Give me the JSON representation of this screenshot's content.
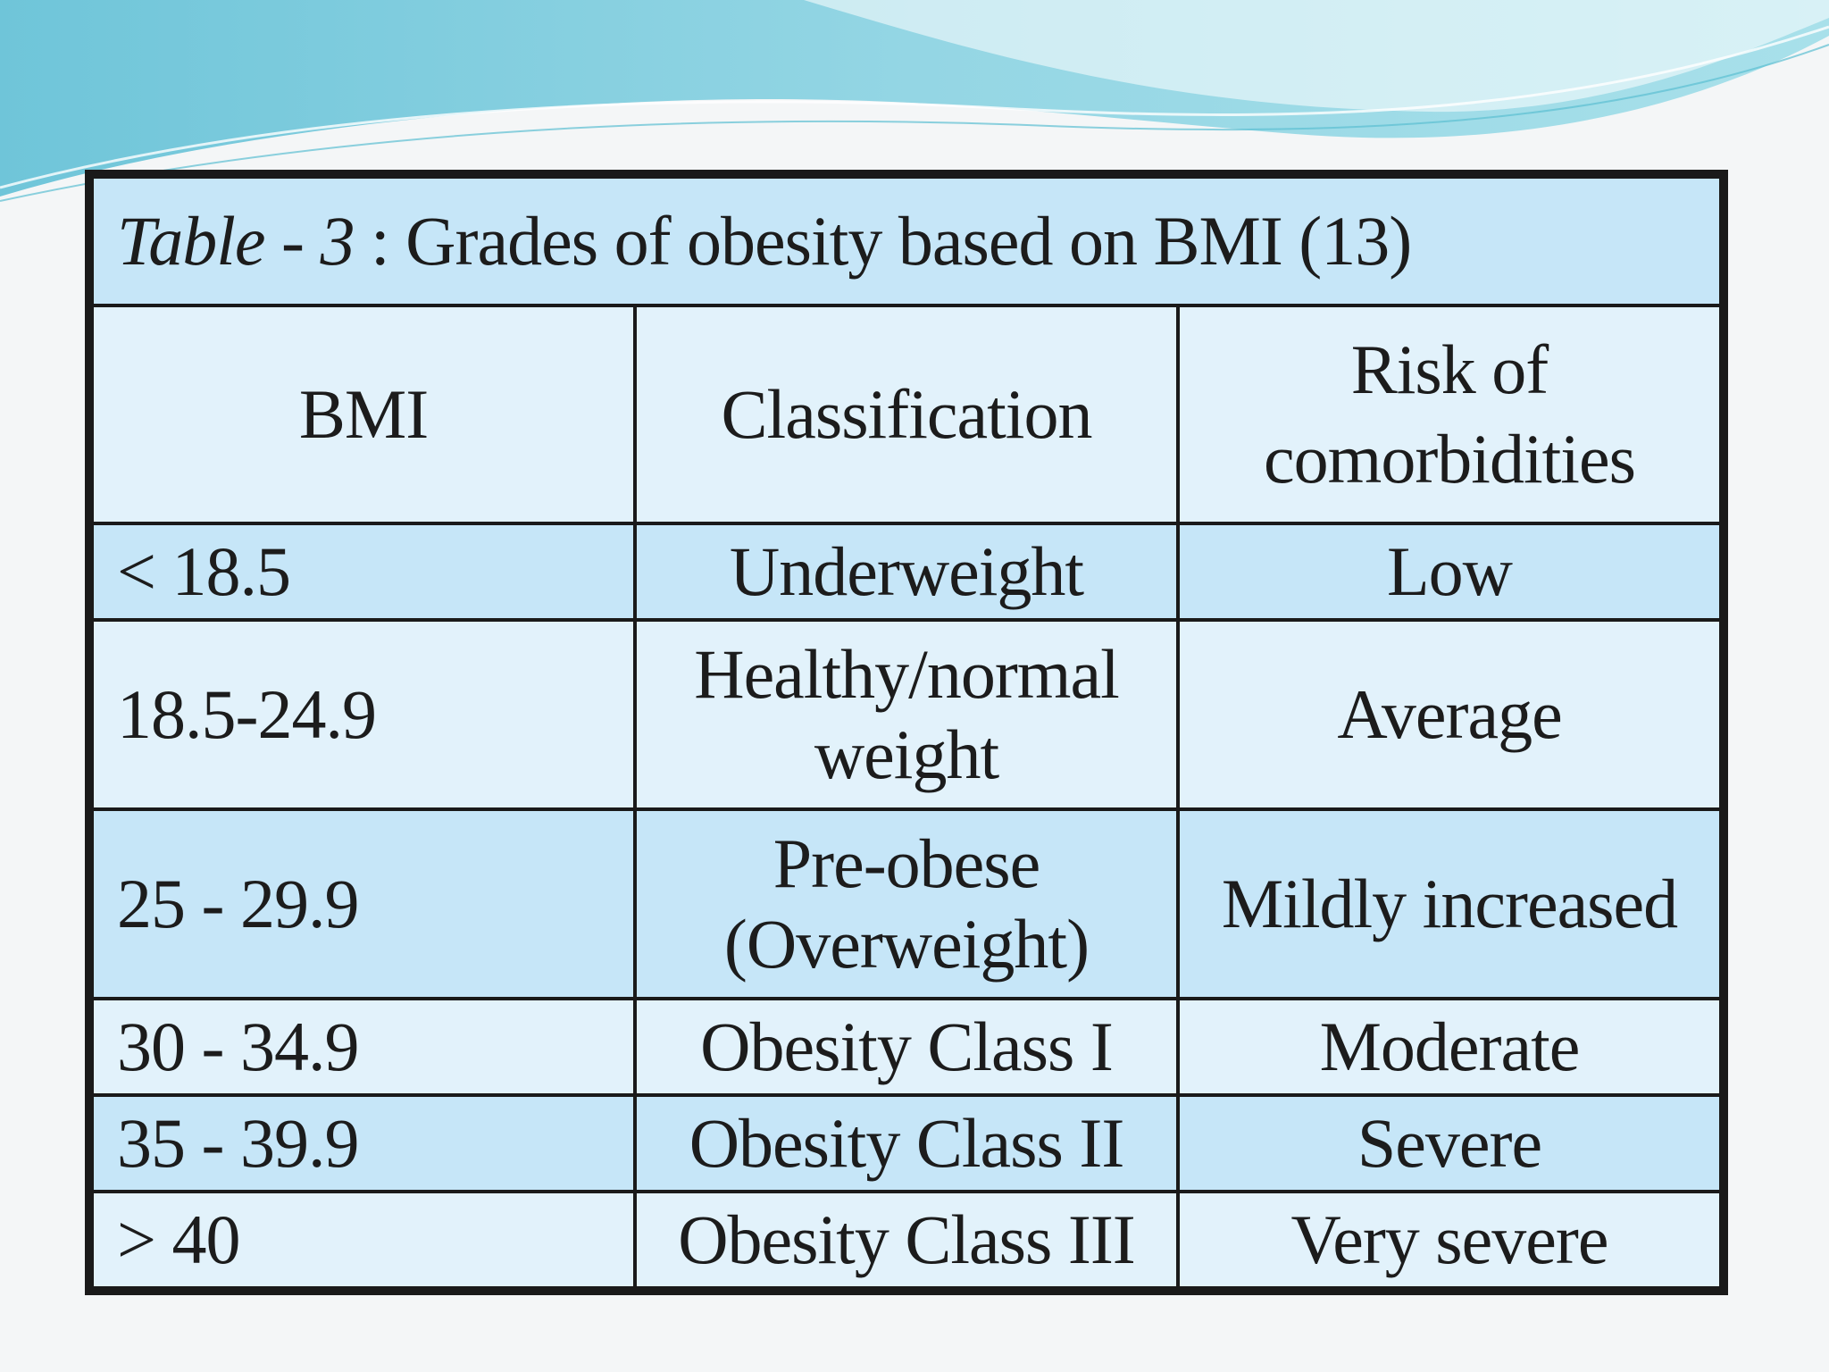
{
  "table": {
    "caption_italic": "Table - 3",
    "caption_rest": " : Grades of obesity based on BMI (13)",
    "headers": [
      "BMI",
      "Classification",
      "Risk of\ncomorbidities"
    ],
    "rows": [
      {
        "bmi": "< 18.5",
        "classification": "Underweight",
        "risk": "Low"
      },
      {
        "bmi": "18.5-24.9",
        "classification": "Healthy/normal weight",
        "risk": "Average"
      },
      {
        "bmi": "25 - 29.9",
        "classification": "Pre-obese (Overweight)",
        "risk": "Mildly increased"
      },
      {
        "bmi": "30 - 34.9",
        "classification": "Obesity Class I",
        "risk": "Moderate"
      },
      {
        "bmi": "35 - 39.9",
        "classification": "Obesity Class II",
        "risk": "Severe"
      },
      {
        "bmi": "> 40",
        "classification": "Obesity Class III",
        "risk": "Very severe"
      }
    ]
  },
  "colors": {
    "band_dark": "#c6e6f8",
    "band_light": "#e2f2fb",
    "border": "#1a1a1a",
    "wave_teal": "#7fcfdc",
    "wave_light": "#bfe7ee"
  }
}
